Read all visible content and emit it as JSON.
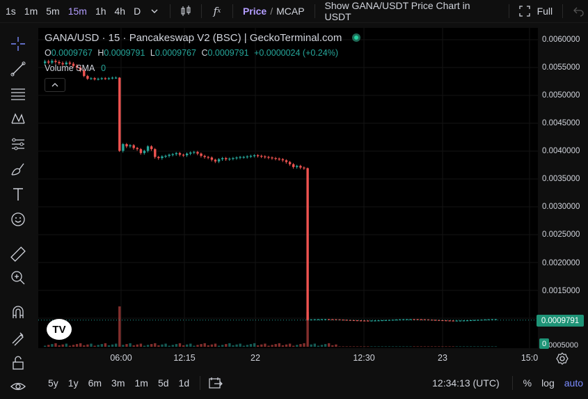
{
  "topbar": {
    "timeframes": [
      "1s",
      "1m",
      "5m",
      "15m",
      "1h",
      "4h",
      "D"
    ],
    "active_timeframe": "15m",
    "price_label": "Price",
    "slash": "/",
    "mcap_label": "MCAP",
    "usdt_label": "Show GANA/USDT Price Chart in USDT",
    "full_label": "Full"
  },
  "legend": {
    "title": "GANA/USD · 15 · Pancakeswap V2 (BSC) | GeckoTerminal.com",
    "o_label": "O",
    "o": "0.0009767",
    "h_label": "H",
    "h": "0.0009791",
    "l_label": "L",
    "l": "0.0009767",
    "c_label": "C",
    "c": "0.0009791",
    "change": "+0.0000024 (+0.24%)",
    "volume_label": "Volume",
    "sma_label": "SMA",
    "volume_value": "0"
  },
  "yaxis": {
    "labels": [
      "0.0060000",
      "0.0055000",
      "0.0050000",
      "0.0045000",
      "0.0040000",
      "0.0035000",
      "0.0030000",
      "0.0025000",
      "0.0020000",
      "0.0015000",
      "0.0005000"
    ],
    "current_price": "0.0009791",
    "volume_tag": "0"
  },
  "xaxis": {
    "labels": [
      "06:00",
      "12:15",
      "22",
      "12:30",
      "23",
      "15:0"
    ]
  },
  "bottombar": {
    "ranges": [
      "5y",
      "1y",
      "6m",
      "3m",
      "1m",
      "5d",
      "1d"
    ],
    "time": "12:34:13 (UTC)",
    "percent": "%",
    "log": "log",
    "auto": "auto"
  },
  "chart_data": {
    "type": "candlestick",
    "ylim": [
      0.0005,
      0.0062
    ],
    "segments": [
      {
        "label": "early",
        "price": 0.0056
      },
      {
        "label": "drop-1",
        "from": 0.0053,
        "to": 0.004
      },
      {
        "label": "plateau",
        "price": 0.0039
      },
      {
        "label": "drop-2",
        "from": 0.0037,
        "to": 0.00098
      },
      {
        "label": "late",
        "price": 0.00098
      }
    ],
    "colors": {
      "up": "#26a69a",
      "down": "#ef5350"
    }
  }
}
